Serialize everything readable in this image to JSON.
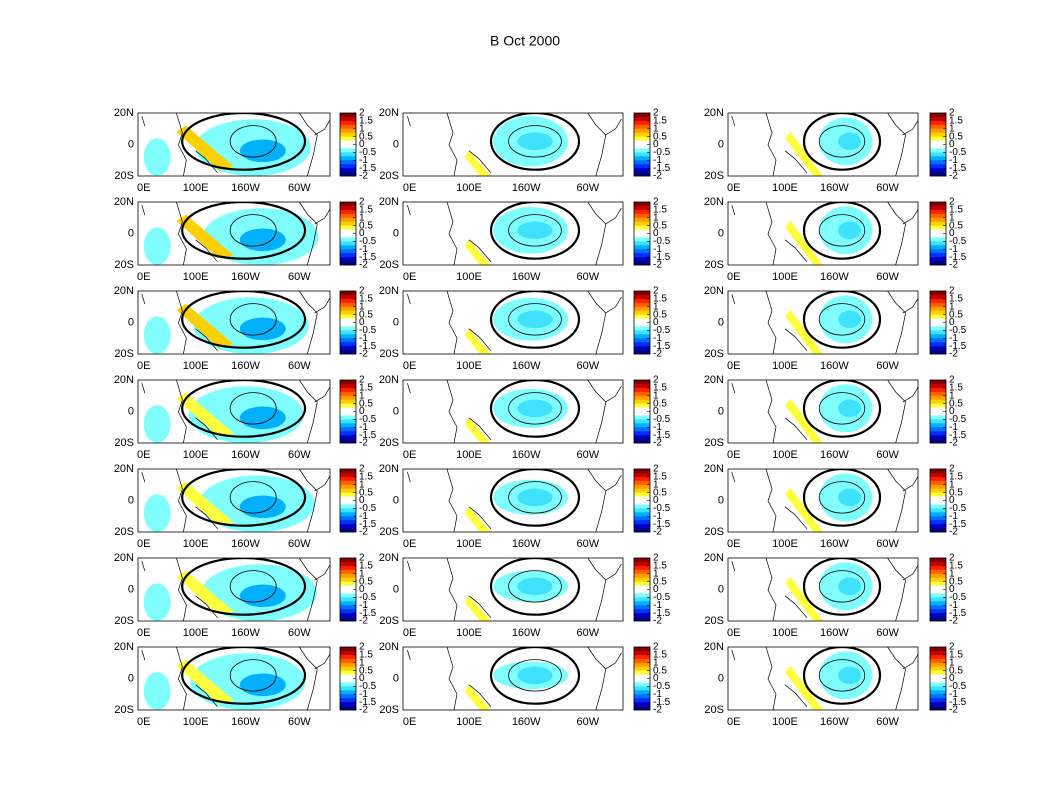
{
  "title": "B Oct 2000",
  "lat_labels": [
    "20N",
    "0",
    "20S"
  ],
  "lon_labels": [
    "0E",
    "100E",
    "160W",
    "60W"
  ],
  "colorbar": {
    "clim": [
      -2,
      2
    ],
    "ticks": [
      2,
      1.5,
      1,
      0.5,
      0,
      -0.5,
      -1,
      -1.5,
      -2
    ]
  }
}
